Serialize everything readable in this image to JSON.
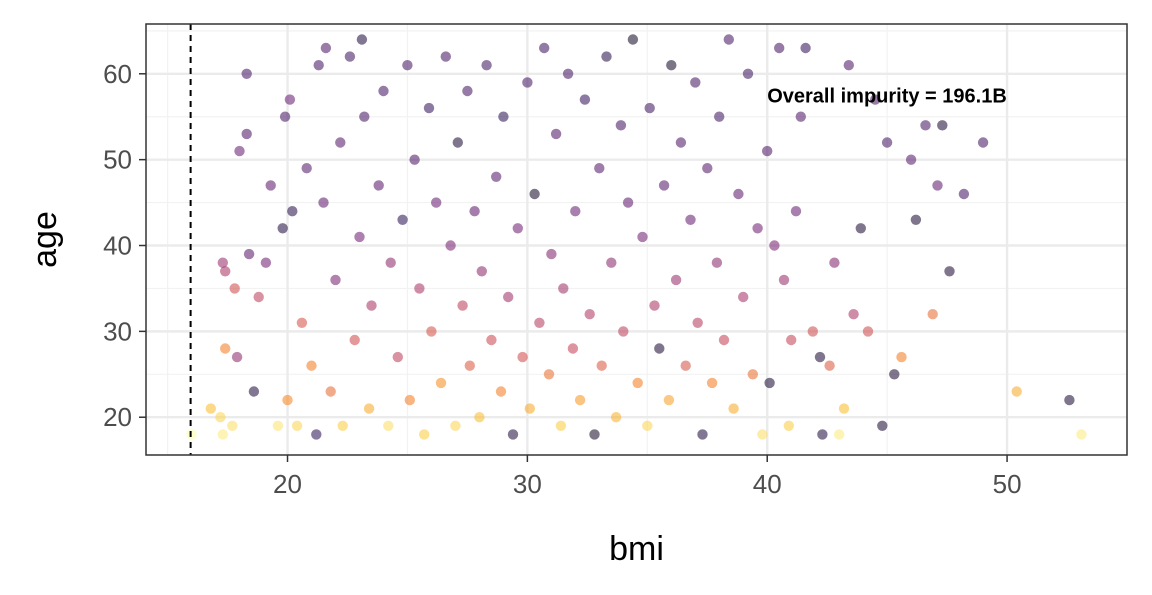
{
  "chart_data": {
    "type": "scatter",
    "title": "",
    "xlabel": "bmi",
    "ylabel": "age",
    "xlim": [
      14.1,
      55.0
    ],
    "ylim": [
      15.6,
      65.8
    ],
    "x_ticks": [
      20,
      30,
      40,
      50
    ],
    "y_ticks": [
      20,
      30,
      40,
      50,
      60
    ],
    "x_ticks_labels": [
      "20",
      "30",
      "40",
      "50"
    ],
    "y_ticks_labels": [
      "20",
      "30",
      "40",
      "50",
      "60"
    ],
    "grid": true,
    "legend": "none",
    "color_scale": [
      "#FCFFA4",
      "#FAC127",
      "#F57D15",
      "#D44842",
      "#9F2A63",
      "#65156E",
      "#280B53",
      "#000004"
    ],
    "point_opacity": 0.55,
    "vline": {
      "x": 15.96,
      "style": "dashed"
    },
    "annotation": {
      "text": "Overall impurity = 196.1B",
      "x": 40.0,
      "y": 57.5
    },
    "points": [
      [
        16.0,
        18,
        0.0
      ],
      [
        16.8,
        21,
        0.16
      ],
      [
        17.3,
        18,
        0.05
      ],
      [
        17.2,
        20,
        0.1
      ],
      [
        17.3,
        38,
        0.6
      ],
      [
        17.4,
        28,
        0.3
      ],
      [
        17.4,
        37,
        0.55
      ],
      [
        17.7,
        19,
        0.08
      ],
      [
        17.8,
        35,
        0.45
      ],
      [
        17.9,
        27,
        0.62
      ],
      [
        18.0,
        51,
        0.72
      ],
      [
        18.3,
        60,
        0.8
      ],
      [
        18.3,
        53,
        0.78
      ],
      [
        18.4,
        39,
        0.75
      ],
      [
        18.6,
        23,
        0.9
      ],
      [
        18.8,
        34,
        0.5
      ],
      [
        19.1,
        38,
        0.7
      ],
      [
        19.3,
        47,
        0.74
      ],
      [
        19.6,
        19,
        0.07
      ],
      [
        19.8,
        42,
        0.9
      ],
      [
        19.9,
        55,
        0.8
      ],
      [
        20.0,
        22,
        0.28
      ],
      [
        20.1,
        57,
        0.72
      ],
      [
        20.2,
        44,
        0.88
      ],
      [
        20.4,
        19,
        0.1
      ],
      [
        20.6,
        31,
        0.42
      ],
      [
        20.8,
        49,
        0.76
      ],
      [
        21.0,
        26,
        0.3
      ],
      [
        21.2,
        18,
        0.86
      ],
      [
        21.3,
        61,
        0.8
      ],
      [
        21.5,
        45,
        0.74
      ],
      [
        21.6,
        63,
        0.78
      ],
      [
        21.8,
        23,
        0.35
      ],
      [
        22.0,
        36,
        0.68
      ],
      [
        22.2,
        52,
        0.76
      ],
      [
        22.3,
        19,
        0.12
      ],
      [
        22.6,
        62,
        0.82
      ],
      [
        22.8,
        29,
        0.45
      ],
      [
        23.0,
        41,
        0.7
      ],
      [
        23.1,
        64,
        0.9
      ],
      [
        23.2,
        55,
        0.8
      ],
      [
        23.4,
        21,
        0.2
      ],
      [
        23.5,
        33,
        0.55
      ],
      [
        23.8,
        47,
        0.75
      ],
      [
        24.0,
        58,
        0.8
      ],
      [
        24.2,
        19,
        0.08
      ],
      [
        24.3,
        38,
        0.62
      ],
      [
        24.6,
        27,
        0.5
      ],
      [
        24.8,
        43,
        0.86
      ],
      [
        25.0,
        61,
        0.8
      ],
      [
        25.1,
        22,
        0.3
      ],
      [
        25.3,
        50,
        0.78
      ],
      [
        25.5,
        35,
        0.55
      ],
      [
        25.7,
        18,
        0.12
      ],
      [
        25.9,
        56,
        0.84
      ],
      [
        26.0,
        30,
        0.42
      ],
      [
        26.2,
        45,
        0.72
      ],
      [
        26.4,
        24,
        0.26
      ],
      [
        26.6,
        62,
        0.8
      ],
      [
        26.8,
        40,
        0.68
      ],
      [
        27.0,
        19,
        0.1
      ],
      [
        27.1,
        52,
        0.92
      ],
      [
        27.3,
        33,
        0.5
      ],
      [
        27.5,
        58,
        0.8
      ],
      [
        27.6,
        26,
        0.4
      ],
      [
        27.8,
        44,
        0.74
      ],
      [
        28.0,
        20,
        0.16
      ],
      [
        28.1,
        37,
        0.62
      ],
      [
        28.3,
        61,
        0.82
      ],
      [
        28.5,
        29,
        0.46
      ],
      [
        28.7,
        48,
        0.76
      ],
      [
        28.9,
        23,
        0.3
      ],
      [
        29.0,
        55,
        0.86
      ],
      [
        29.2,
        34,
        0.58
      ],
      [
        29.4,
        18,
        0.9
      ],
      [
        29.6,
        42,
        0.7
      ],
      [
        29.8,
        27,
        0.44
      ],
      [
        30.0,
        59,
        0.8
      ],
      [
        30.1,
        21,
        0.2
      ],
      [
        30.3,
        46,
        0.95
      ],
      [
        30.5,
        31,
        0.52
      ],
      [
        30.7,
        63,
        0.82
      ],
      [
        30.9,
        25,
        0.34
      ],
      [
        31.0,
        39,
        0.66
      ],
      [
        31.2,
        53,
        0.78
      ],
      [
        31.4,
        19,
        0.12
      ],
      [
        31.5,
        35,
        0.58
      ],
      [
        31.7,
        60,
        0.8
      ],
      [
        31.9,
        28,
        0.48
      ],
      [
        32.0,
        44,
        0.72
      ],
      [
        32.2,
        22,
        0.24
      ],
      [
        32.4,
        57,
        0.84
      ],
      [
        32.6,
        32,
        0.54
      ],
      [
        32.8,
        18,
        0.94
      ],
      [
        33.0,
        49,
        0.76
      ],
      [
        33.1,
        26,
        0.4
      ],
      [
        33.3,
        62,
        0.88
      ],
      [
        33.5,
        38,
        0.64
      ],
      [
        33.7,
        20,
        0.18
      ],
      [
        33.9,
        54,
        0.8
      ],
      [
        34.0,
        30,
        0.5
      ],
      [
        34.2,
        45,
        0.74
      ],
      [
        34.4,
        64,
        0.95
      ],
      [
        34.6,
        24,
        0.3
      ],
      [
        34.8,
        41,
        0.7
      ],
      [
        35.0,
        19,
        0.1
      ],
      [
        35.1,
        56,
        0.82
      ],
      [
        35.3,
        33,
        0.55
      ],
      [
        35.5,
        28,
        0.92
      ],
      [
        35.7,
        47,
        0.76
      ],
      [
        35.9,
        22,
        0.22
      ],
      [
        36.0,
        61,
        0.95
      ],
      [
        36.2,
        36,
        0.6
      ],
      [
        36.4,
        52,
        0.78
      ],
      [
        36.6,
        26,
        0.42
      ],
      [
        36.8,
        43,
        0.72
      ],
      [
        37.0,
        59,
        0.8
      ],
      [
        37.1,
        31,
        0.52
      ],
      [
        37.3,
        18,
        0.9
      ],
      [
        37.5,
        49,
        0.76
      ],
      [
        37.7,
        24,
        0.3
      ],
      [
        37.9,
        38,
        0.64
      ],
      [
        38.0,
        55,
        0.82
      ],
      [
        38.2,
        29,
        0.48
      ],
      [
        38.4,
        64,
        0.8
      ],
      [
        38.6,
        21,
        0.2
      ],
      [
        38.8,
        46,
        0.74
      ],
      [
        39.0,
        34,
        0.56
      ],
      [
        39.2,
        60,
        0.82
      ],
      [
        39.4,
        25,
        0.34
      ],
      [
        39.6,
        42,
        0.7
      ],
      [
        39.8,
        18,
        0.08
      ],
      [
        40.0,
        51,
        0.78
      ],
      [
        40.1,
        24,
        0.92
      ],
      [
        40.3,
        40,
        0.68
      ],
      [
        40.5,
        63,
        0.8
      ],
      [
        40.7,
        36,
        0.6
      ],
      [
        40.9,
        19,
        0.12
      ],
      [
        41.0,
        29,
        0.48
      ],
      [
        41.2,
        44,
        0.72
      ],
      [
        41.4,
        55,
        0.78
      ],
      [
        41.6,
        63,
        0.85
      ],
      [
        41.9,
        30,
        0.45
      ],
      [
        42.2,
        27,
        0.92
      ],
      [
        42.3,
        18,
        0.9
      ],
      [
        42.6,
        26,
        0.4
      ],
      [
        42.8,
        38,
        0.66
      ],
      [
        43.0,
        18,
        0.05
      ],
      [
        43.2,
        21,
        0.16
      ],
      [
        43.4,
        61,
        0.78
      ],
      [
        43.6,
        32,
        0.55
      ],
      [
        43.9,
        42,
        0.92
      ],
      [
        44.2,
        30,
        0.45
      ],
      [
        44.5,
        57,
        0.78
      ],
      [
        44.8,
        19,
        0.92
      ],
      [
        45.0,
        52,
        0.8
      ],
      [
        45.3,
        25,
        0.92
      ],
      [
        45.6,
        27,
        0.3
      ],
      [
        46.0,
        50,
        0.76
      ],
      [
        46.2,
        43,
        0.92
      ],
      [
        46.6,
        54,
        0.8
      ],
      [
        46.9,
        32,
        0.35
      ],
      [
        47.1,
        47,
        0.74
      ],
      [
        47.3,
        54,
        0.92
      ],
      [
        47.6,
        37,
        0.92
      ],
      [
        48.2,
        46,
        0.8
      ],
      [
        49.0,
        52,
        0.8
      ],
      [
        50.4,
        23,
        0.2
      ],
      [
        52.6,
        22,
        0.92
      ],
      [
        53.1,
        18,
        0.05
      ]
    ]
  }
}
